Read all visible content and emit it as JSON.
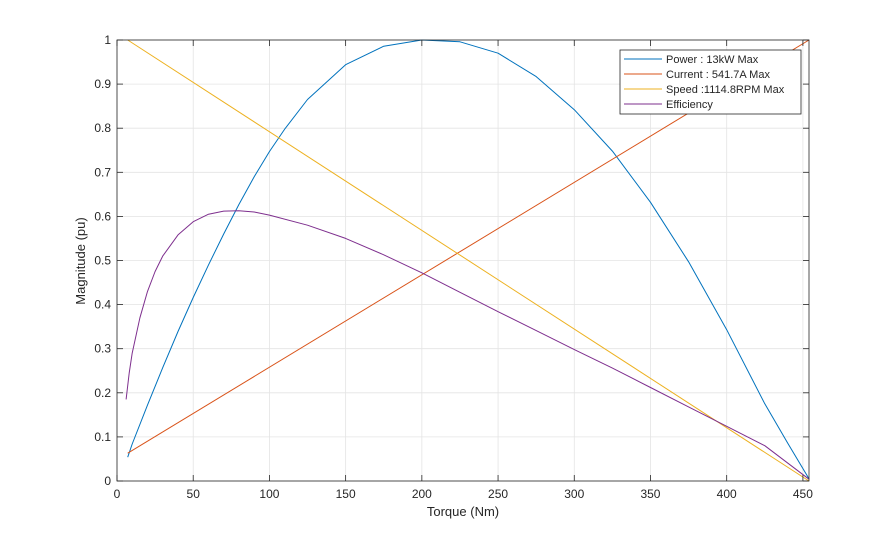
{
  "chart_data": {
    "type": "line",
    "title": "",
    "xlabel": "Torque (Nm)",
    "ylabel": "Magnitude (pu)",
    "xlim": [
      0,
      454
    ],
    "ylim": [
      0,
      1
    ],
    "xticks": [
      0,
      50,
      100,
      150,
      200,
      250,
      300,
      350,
      400,
      450
    ],
    "yticks": [
      0,
      0.1,
      0.2,
      0.3,
      0.4,
      0.5,
      0.6,
      0.7,
      0.8,
      0.9,
      1
    ],
    "grid": true,
    "legend_position": "top-right",
    "series": [
      {
        "name": "Power : 13kW Max",
        "color": "#0072BD",
        "x": [
          7,
          10,
          20,
          30,
          40,
          50,
          60,
          70,
          80,
          90,
          100,
          110,
          125,
          150,
          175,
          200,
          225,
          250,
          275,
          300,
          325,
          350,
          375,
          400,
          425,
          440,
          454
        ],
        "y": [
          0.054,
          0.084,
          0.172,
          0.257,
          0.339,
          0.416,
          0.49,
          0.56,
          0.627,
          0.69,
          0.747,
          0.798,
          0.865,
          0.944,
          0.986,
          1.0,
          0.996,
          0.97,
          0.917,
          0.842,
          0.748,
          0.632,
          0.497,
          0.343,
          0.175,
          0.086,
          0.005
        ]
      },
      {
        "name": "Current : 541.7A Max",
        "color": "#D95319",
        "x": [
          7,
          454
        ],
        "y": [
          0.063,
          1.0
        ]
      },
      {
        "name": "Speed :1114.8RPM Max",
        "color": "#EDB120",
        "x": [
          7,
          454
        ],
        "y": [
          1.0,
          0.0
        ]
      },
      {
        "name": "Efficiency",
        "color": "#7E2F8E",
        "x": [
          6,
          8,
          10,
          15,
          20,
          25,
          30,
          40,
          50,
          60,
          70,
          80,
          90,
          100,
          125,
          150,
          175,
          200,
          225,
          250,
          275,
          300,
          325,
          350,
          375,
          400,
          425,
          454
        ],
        "y": [
          0.185,
          0.245,
          0.29,
          0.37,
          0.43,
          0.475,
          0.51,
          0.558,
          0.588,
          0.605,
          0.612,
          0.613,
          0.61,
          0.603,
          0.58,
          0.55,
          0.513,
          0.472,
          0.428,
          0.384,
          0.341,
          0.298,
          0.256,
          0.212,
          0.168,
          0.124,
          0.08,
          0.004
        ]
      }
    ]
  }
}
